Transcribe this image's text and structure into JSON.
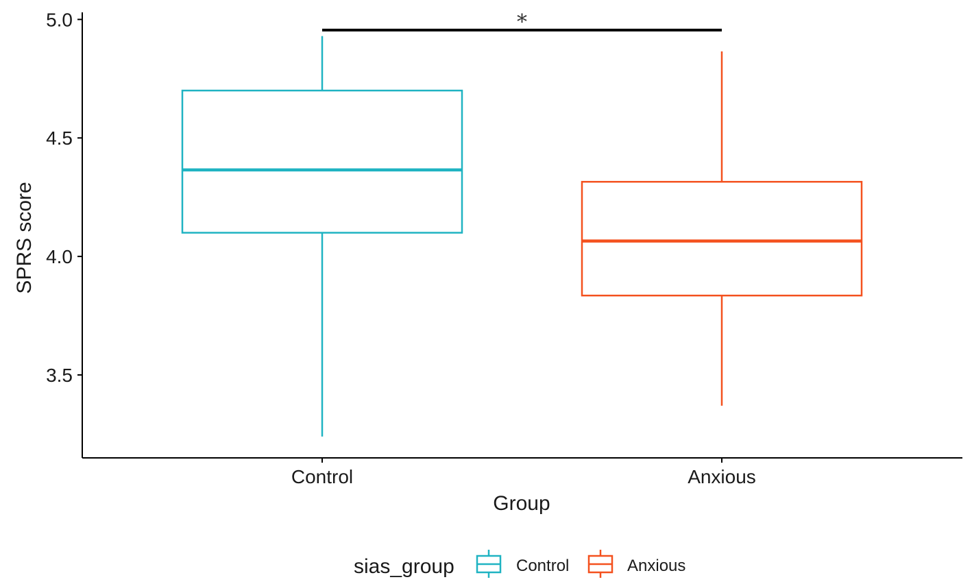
{
  "chart_data": {
    "type": "box",
    "xlabel": "Group",
    "ylabel": "SPRS score",
    "categories": [
      "Control",
      "Anxious"
    ],
    "ylim": [
      3.15,
      5.03
    ],
    "yticks": [
      3.5,
      4.0,
      4.5,
      5.0
    ],
    "ytick_labels": [
      "3.5",
      "4.0",
      "4.5",
      "5.0"
    ],
    "grid": false,
    "boxes": [
      {
        "group": "Control",
        "whisker_low": 3.24,
        "q1": 4.1,
        "median": 4.365,
        "q3": 4.7,
        "whisker_high": 4.93
      },
      {
        "group": "Anxious",
        "whisker_low": 3.37,
        "q1": 3.835,
        "median": 4.065,
        "q3": 4.315,
        "whisker_high": 4.865
      }
    ],
    "significance": {
      "from": "Control",
      "to": "Anxious",
      "y": 4.955,
      "label": "*"
    },
    "legend": {
      "title": "sias_group",
      "position": "bottom",
      "items": [
        {
          "label": "Control",
          "color": "#1FB3C2"
        },
        {
          "label": "Anxious",
          "color": "#F4511E"
        }
      ]
    },
    "colors": {
      "Control": "#1FB3C2",
      "Anxious": "#F4511E",
      "axis": "#000000"
    }
  }
}
